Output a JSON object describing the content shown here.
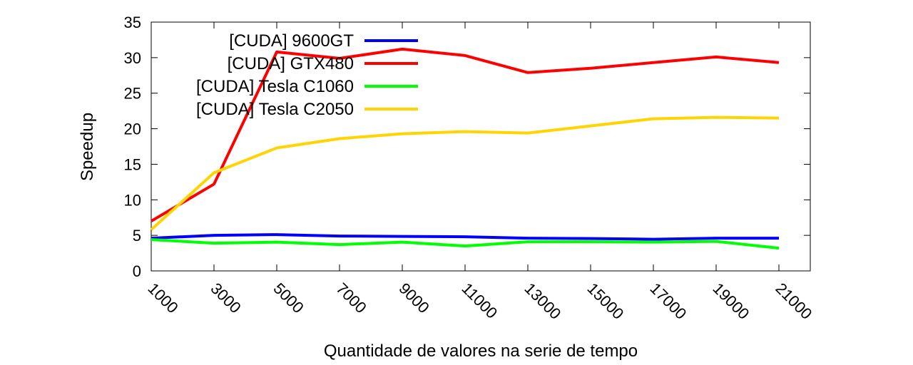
{
  "chart_data": {
    "type": "line",
    "title": "",
    "xlabel": "Quantidade de valores na serie de tempo",
    "ylabel": "Speedup",
    "x": [
      1000,
      3000,
      5000,
      7000,
      9000,
      11000,
      13000,
      15000,
      17000,
      19000,
      21000
    ],
    "xticks": [
      1000,
      3000,
      5000,
      7000,
      9000,
      11000,
      13000,
      15000,
      17000,
      19000,
      21000
    ],
    "yticks": [
      0,
      5,
      10,
      15,
      20,
      25,
      30,
      35
    ],
    "xlim": [
      1000,
      22000
    ],
    "ylim": [
      0,
      35
    ],
    "grid": false,
    "legend_position": "top-left",
    "series": [
      {
        "name": "[CUDA] 9600GT",
        "color": "#0000ff",
        "values": [
          4.6,
          5.0,
          5.1,
          4.9,
          4.85,
          4.8,
          4.6,
          4.55,
          4.45,
          4.6,
          4.6
        ]
      },
      {
        "name": "[CUDA] GTX480",
        "color": "#ff0000",
        "values": [
          7.0,
          12.2,
          30.8,
          29.9,
          31.2,
          30.3,
          27.9,
          28.5,
          29.3,
          30.1,
          29.3
        ]
      },
      {
        "name": "[CUDA] Tesla C1060",
        "color": "#00ff00",
        "values": [
          4.4,
          3.9,
          4.05,
          3.7,
          4.05,
          3.5,
          4.1,
          4.1,
          4.05,
          4.15,
          3.2
        ]
      },
      {
        "name": "[CUDA] Tesla C2050",
        "color": "#ffd400",
        "values": [
          5.8,
          13.8,
          17.3,
          18.6,
          19.3,
          19.6,
          19.4,
          20.4,
          21.4,
          21.6,
          21.5
        ]
      }
    ]
  }
}
